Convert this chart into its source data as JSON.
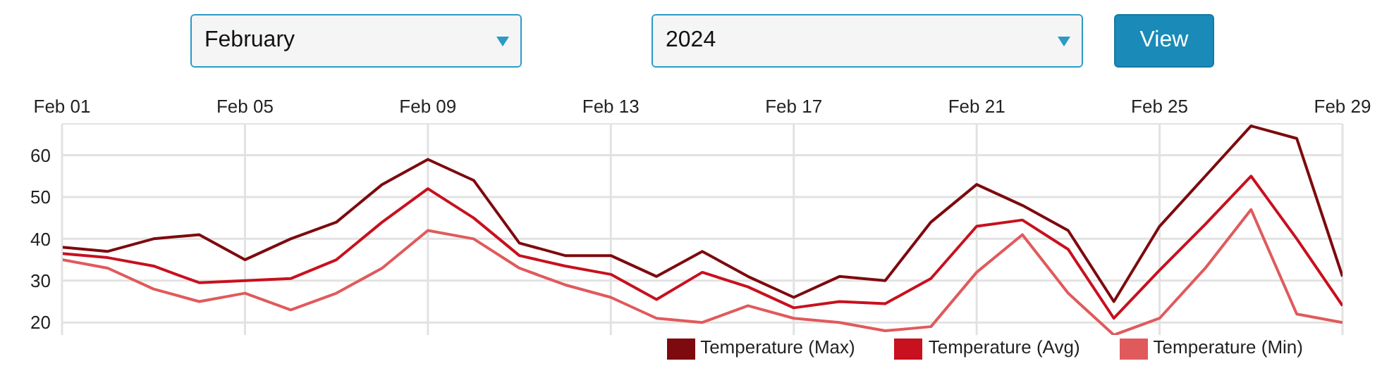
{
  "chart_data": {
    "type": "line",
    "x": [
      "2024-02-01",
      "2024-02-02",
      "2024-02-03",
      "2024-02-04",
      "2024-02-05",
      "2024-02-06",
      "2024-02-07",
      "2024-02-08",
      "2024-02-09",
      "2024-02-10",
      "2024-02-11",
      "2024-02-12",
      "2024-02-13",
      "2024-02-14",
      "2024-02-15",
      "2024-02-16",
      "2024-02-17",
      "2024-02-18",
      "2024-02-19",
      "2024-02-20",
      "2024-02-21",
      "2024-02-22",
      "2024-02-23",
      "2024-02-24",
      "2024-02-25",
      "2024-02-26",
      "2024-02-27",
      "2024-02-28",
      "2024-02-29"
    ],
    "series": [
      {
        "name": "Temperature (Max)",
        "color": "#7d0a0e",
        "values": [
          38,
          37,
          40,
          41,
          35,
          40,
          44,
          53,
          59,
          54,
          39,
          36,
          36,
          31,
          37,
          31,
          26,
          31,
          30,
          44,
          53,
          48,
          42,
          25,
          43,
          55,
          67,
          64,
          31
        ]
      },
      {
        "name": "Temperature (Avg)",
        "color": "#c8101e",
        "values": [
          36.5,
          35.5,
          33.5,
          29.5,
          30,
          30.5,
          35,
          44,
          52,
          45,
          36,
          33.5,
          31.5,
          25.5,
          32,
          28.5,
          23.5,
          25,
          24.5,
          30.5,
          43,
          44.5,
          37.5,
          21,
          32.5,
          43.5,
          55,
          40,
          24
        ]
      },
      {
        "name": "Temperature (Min)",
        "color": "#e05a5c",
        "values": [
          35,
          33,
          28,
          25,
          27,
          23,
          27,
          33,
          42,
          40,
          33,
          29,
          26,
          21,
          20,
          24,
          21,
          20,
          18,
          19,
          32,
          41,
          27,
          17,
          21,
          33,
          47,
          22,
          20
        ]
      }
    ],
    "xlim": [
      "2024-02-01",
      "2024-02-29"
    ],
    "xticks": [
      {
        "value": "2024-02-01",
        "label": "Feb 01"
      },
      {
        "value": "2024-02-05",
        "label": "Feb 05"
      },
      {
        "value": "2024-02-09",
        "label": "Feb 09"
      },
      {
        "value": "2024-02-13",
        "label": "Feb 13"
      },
      {
        "value": "2024-02-17",
        "label": "Feb 17"
      },
      {
        "value": "2024-02-21",
        "label": "Feb 21"
      },
      {
        "value": "2024-02-25",
        "label": "Feb 25"
      },
      {
        "value": "2024-02-29",
        "label": "Feb 29"
      }
    ],
    "ylim": [
      17,
      67.5
    ],
    "yticks": [
      20,
      30,
      40,
      50,
      60
    ],
    "grid": true,
    "legend": "bottom right",
    "annotations": [
      "February",
      "2024",
      "View"
    ]
  }
}
